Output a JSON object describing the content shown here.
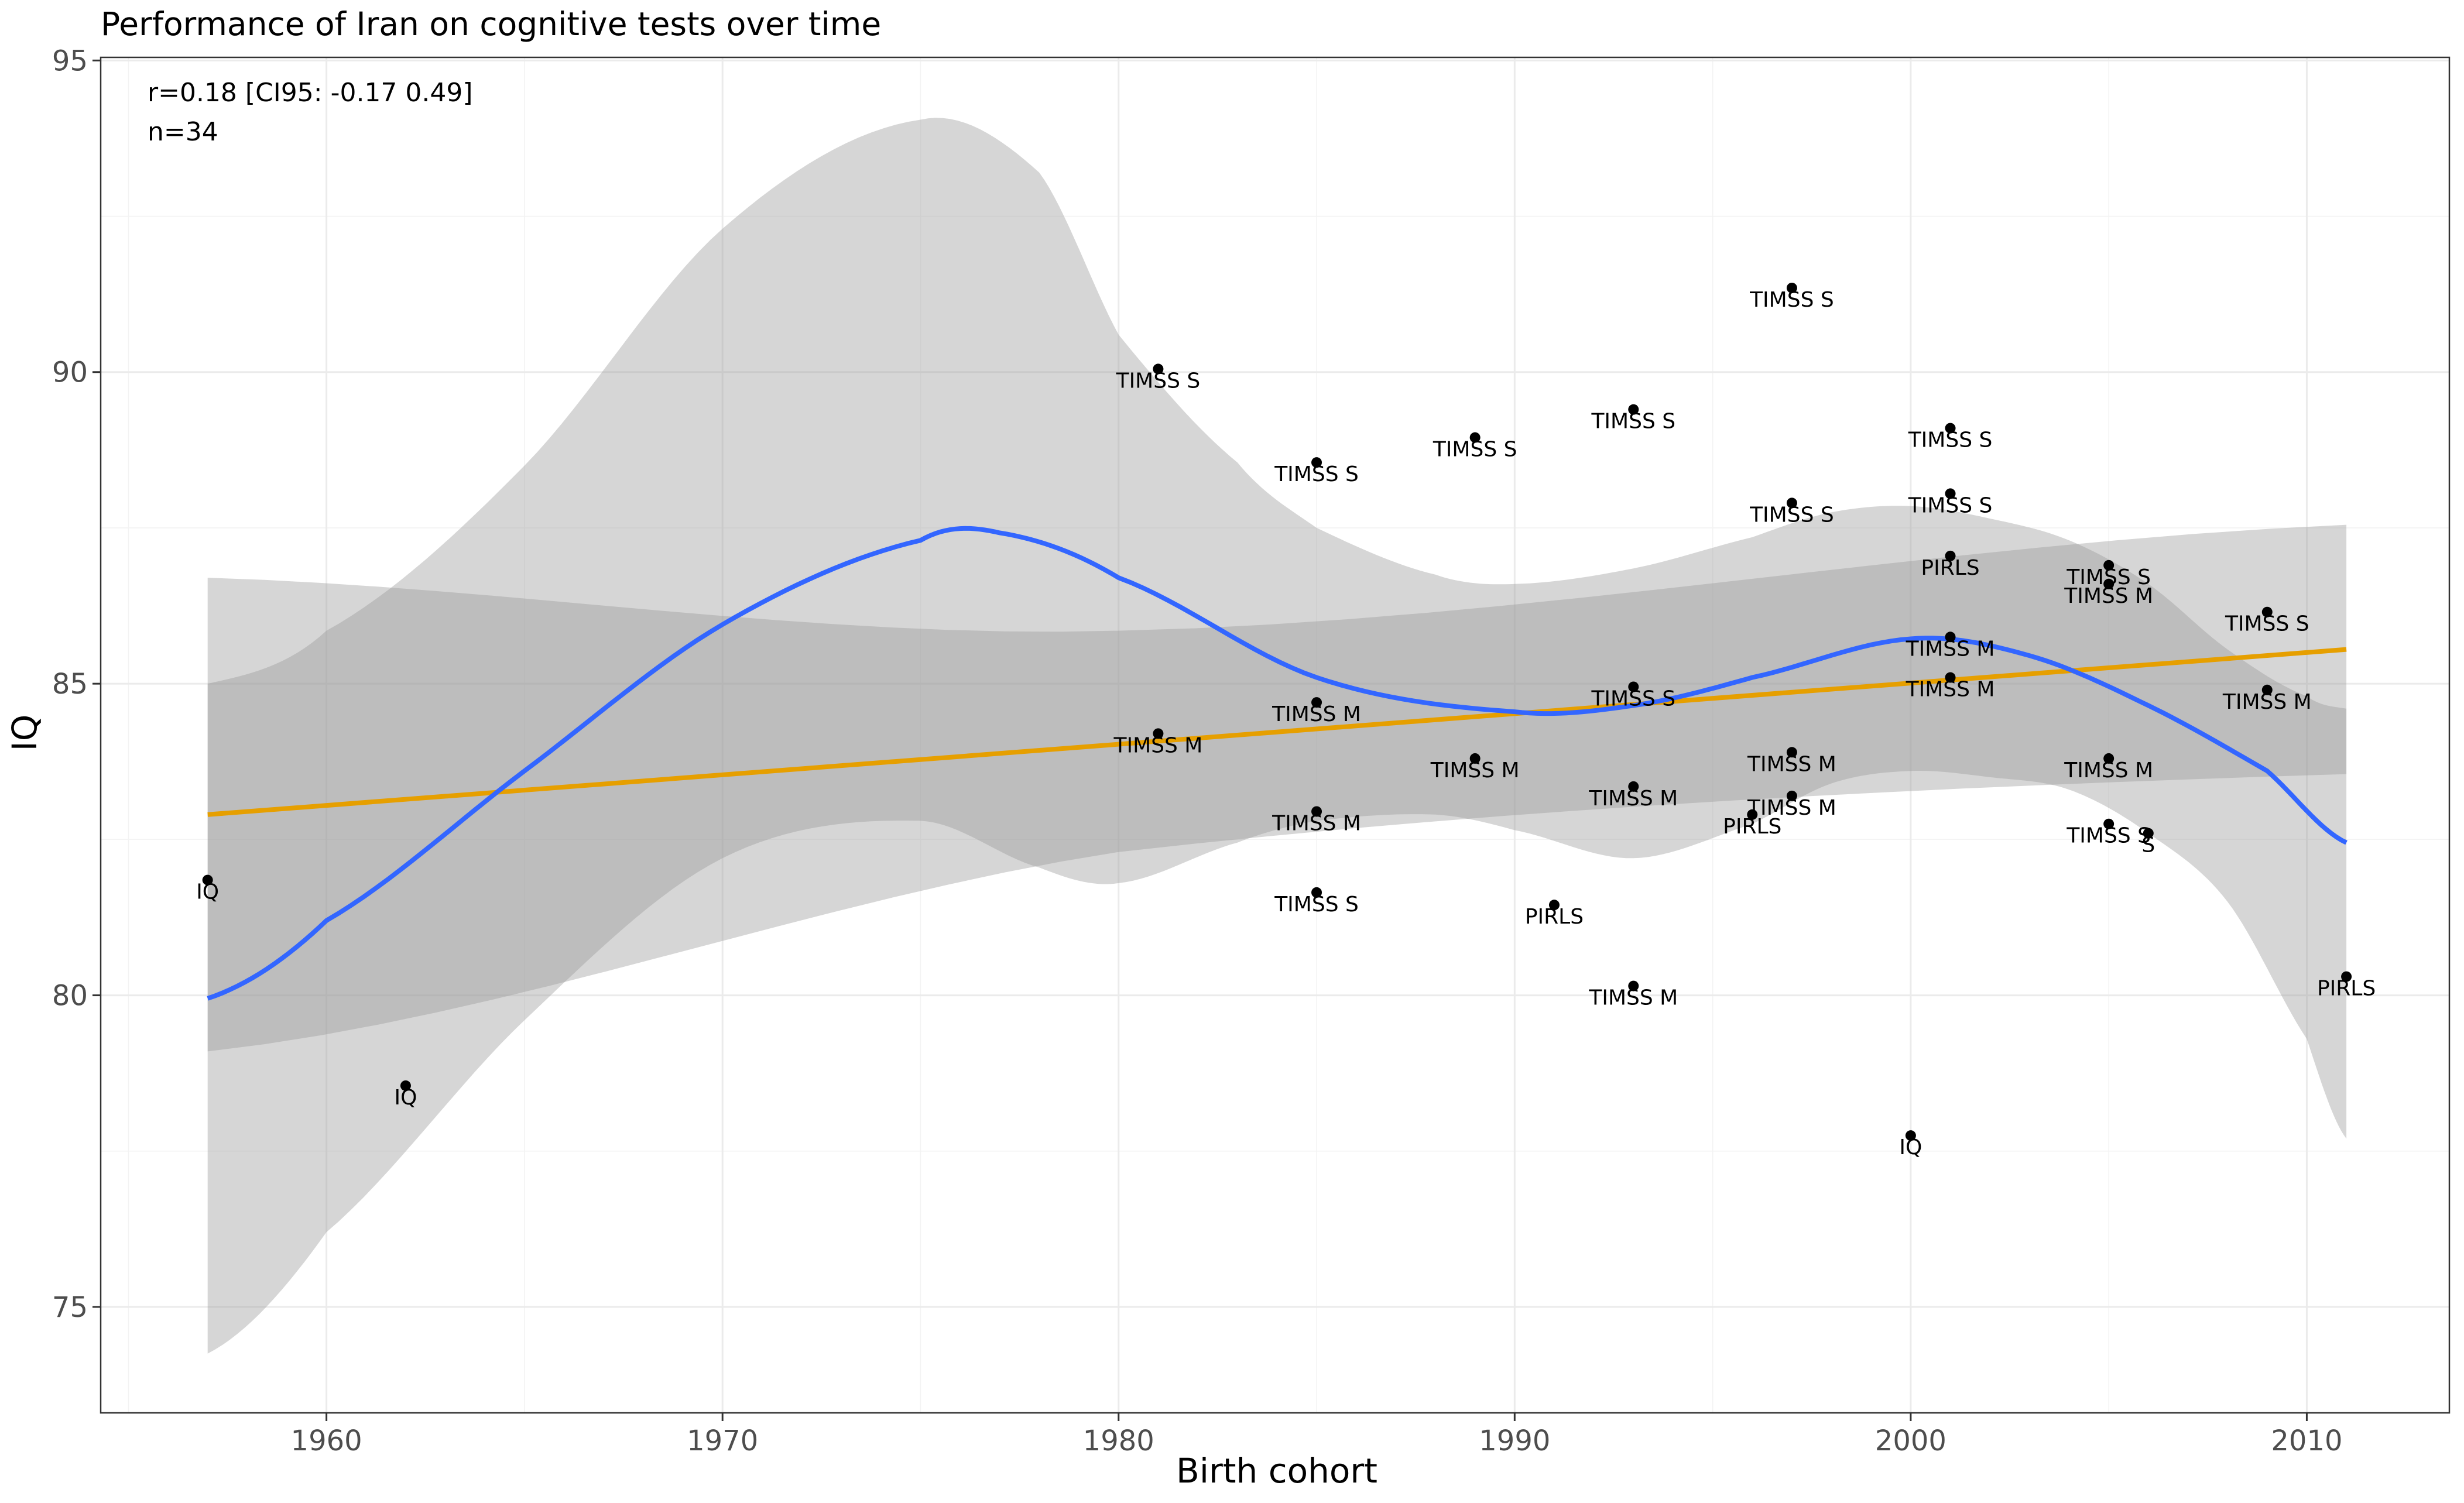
{
  "chart_data": {
    "type": "scatter",
    "title": "Performance of Iran on cognitive tests over time",
    "xlabel": "Birth cohort",
    "ylabel": "IQ",
    "xlim": [
      1954.3,
      2013.6
    ],
    "ylim": [
      73.3,
      95.05
    ],
    "x_ticks": [
      1960,
      1970,
      1980,
      1990,
      2000,
      2010
    ],
    "y_ticks": [
      75,
      80,
      85,
      90,
      95
    ],
    "x_minor_ticks": [
      1955,
      1965,
      1975,
      1985,
      1995,
      2005
    ],
    "y_minor_ticks": [
      77.5,
      82.5,
      87.5,
      92.5
    ],
    "grid": true,
    "legend": "none",
    "annotations": [
      "r=0.18 [CI95: -0.17 0.49]",
      "n=34"
    ],
    "colors": {
      "points": "#000000",
      "loess": "#3366ff",
      "linear": "#e69f00",
      "ribbon": "#999999",
      "panel_border": "#333333"
    },
    "points": [
      {
        "x": 1957,
        "y": 81.85,
        "label": "IQ"
      },
      {
        "x": 1962,
        "y": 78.55,
        "label": "IQ"
      },
      {
        "x": 1981,
        "y": 90.05,
        "label": "TIMSS S"
      },
      {
        "x": 1981,
        "y": 84.2,
        "label": "TIMSS M"
      },
      {
        "x": 1985,
        "y": 88.55,
        "label": "TIMSS S"
      },
      {
        "x": 1985,
        "y": 84.7,
        "label": "TIMSS M"
      },
      {
        "x": 1985,
        "y": 82.95,
        "label": "TIMSS M"
      },
      {
        "x": 1985,
        "y": 81.65,
        "label": "TIMSS S"
      },
      {
        "x": 1989,
        "y": 88.95,
        "label": "TIMSS S"
      },
      {
        "x": 1989,
        "y": 83.8,
        "label": "TIMSS M"
      },
      {
        "x": 1991,
        "y": 81.45,
        "label": "PIRLS"
      },
      {
        "x": 1993,
        "y": 89.4,
        "label": "TIMSS S"
      },
      {
        "x": 1993,
        "y": 84.95,
        "label": "TIMSS S"
      },
      {
        "x": 1993,
        "y": 83.35,
        "label": "TIMSS M"
      },
      {
        "x": 1993,
        "y": 80.15,
        "label": "TIMSS M"
      },
      {
        "x": 1996,
        "y": 82.9,
        "label": "PIRLS"
      },
      {
        "x": 1997,
        "y": 91.35,
        "label": "TIMSS S"
      },
      {
        "x": 1997,
        "y": 87.9,
        "label": "TIMSS S"
      },
      {
        "x": 1997,
        "y": 83.9,
        "label": "TIMSS M"
      },
      {
        "x": 1997,
        "y": 83.2,
        "label": "TIMSS M"
      },
      {
        "x": 2000,
        "y": 77.75,
        "label": "IQ"
      },
      {
        "x": 2001,
        "y": 89.1,
        "label": "TIMSS S"
      },
      {
        "x": 2001,
        "y": 88.05,
        "label": "TIMSS S"
      },
      {
        "x": 2001,
        "y": 87.05,
        "label": "PIRLS"
      },
      {
        "x": 2001,
        "y": 85.75,
        "label": "TIMSS M"
      },
      {
        "x": 2001,
        "y": 85.1,
        "label": "TIMSS M"
      },
      {
        "x": 2005,
        "y": 86.9,
        "label": "TIMSS S"
      },
      {
        "x": 2005,
        "y": 86.6,
        "label": "TIMSS M"
      },
      {
        "x": 2005,
        "y": 83.8,
        "label": "TIMSS M"
      },
      {
        "x": 2005,
        "y": 82.75,
        "label": "TIMSS S"
      },
      {
        "x": 2006,
        "y": 82.6,
        "label": "S"
      },
      {
        "x": 2009,
        "y": 86.15,
        "label": "TIMSS S"
      },
      {
        "x": 2009,
        "y": 84.9,
        "label": "TIMSS M"
      },
      {
        "x": 2011,
        "y": 80.3,
        "label": "PIRLS"
      }
    ],
    "linear_fit": {
      "x": [
        1957,
        2011
      ],
      "y": [
        82.9,
        85.55
      ]
    },
    "linear_ci": {
      "x": [
        1957,
        1980,
        2011
      ],
      "upper": [
        86.7,
        85.85,
        87.55
      ],
      "lower": [
        79.1,
        82.3,
        83.55
      ]
    },
    "loess_fit": {
      "x": [
        1957,
        1960,
        1965,
        1970,
        1975,
        1977,
        1980,
        1985,
        1990,
        1993,
        1996,
        2000,
        2003,
        2006,
        2009,
        2011
      ],
      "y": [
        79.95,
        81.2,
        83.6,
        85.95,
        87.3,
        87.42,
        86.7,
        85.1,
        84.55,
        84.65,
        85.1,
        85.72,
        85.45,
        84.65,
        83.6,
        82.45
      ]
    },
    "loess_ci": {
      "x": [
        1957,
        1960,
        1965,
        1970,
        1975,
        1978,
        1980,
        1983,
        1985,
        1988,
        1990,
        1993,
        1996,
        1998,
        2000,
        2002,
        2004,
        2006,
        2008,
        2010,
        2011
      ],
      "upper": [
        85.0,
        85.85,
        88.5,
        92.3,
        94.05,
        93.2,
        90.6,
        88.55,
        87.5,
        86.75,
        86.6,
        86.85,
        87.35,
        87.75,
        87.85,
        87.65,
        87.3,
        86.6,
        85.55,
        84.8,
        84.6
      ],
      "lower": [
        74.25,
        76.2,
        79.6,
        82.2,
        82.8,
        82.05,
        81.8,
        82.45,
        82.8,
        82.9,
        82.65,
        82.2,
        82.75,
        83.4,
        83.6,
        83.5,
        83.3,
        82.6,
        81.5,
        79.3,
        77.7
      ]
    }
  }
}
